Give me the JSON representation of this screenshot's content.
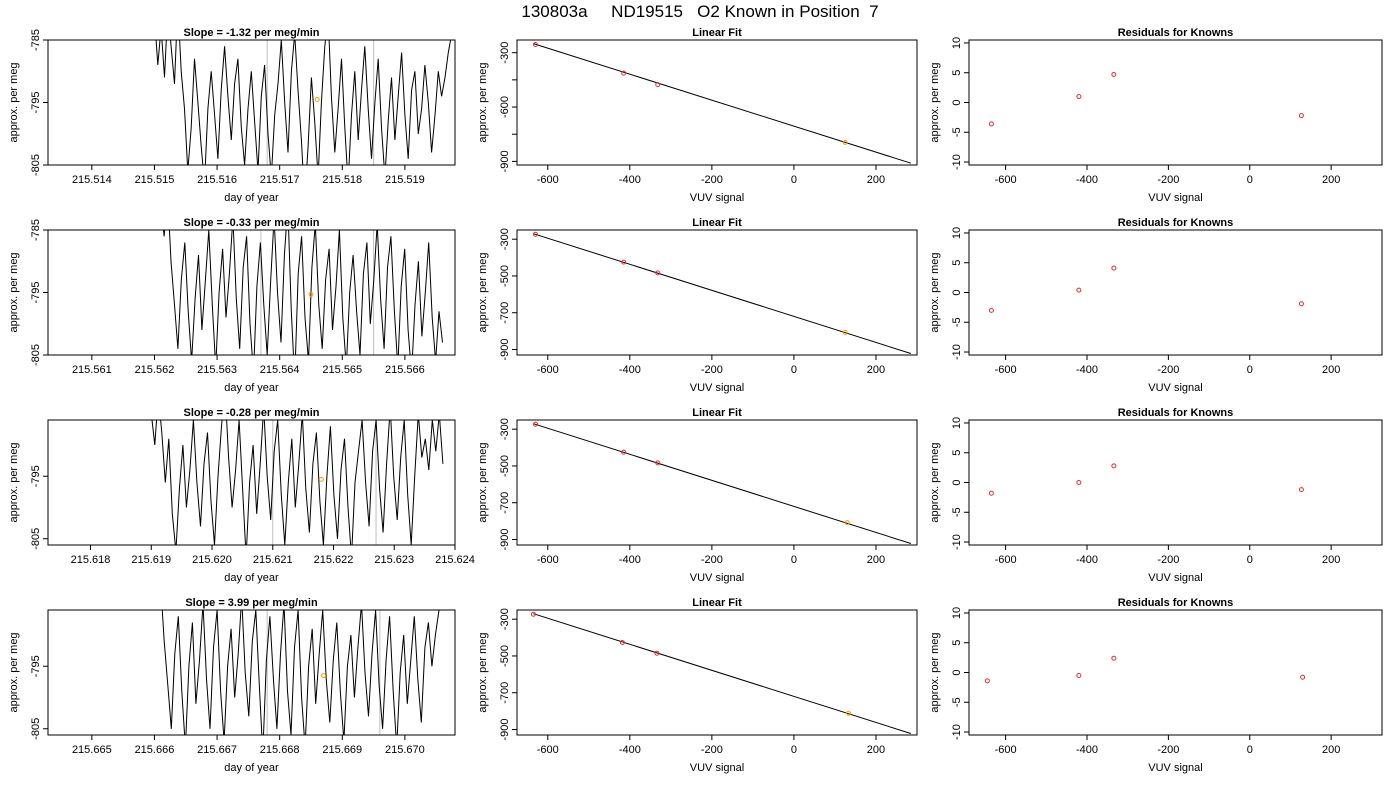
{
  "figure_title": "130803a     ND19515   O2 Known in Position  7",
  "colors": {
    "series_line": "#000000",
    "known_point": "#e03030",
    "current_point": "#ff9900",
    "marker_line": "#bfbfbf"
  },
  "chart_data": [
    {
      "type": "line",
      "row": 1,
      "title": "Slope =  -1.32  per meg/min",
      "xlabel": "day of year",
      "ylabel": "approx. per meg",
      "xlim": [
        215.5133,
        215.5198
      ],
      "ylim": [
        -805,
        -785
      ],
      "x_ticks": [
        "215.514",
        "215.515",
        "215.516",
        "215.517",
        "215.518",
        "215.519"
      ],
      "y_ticks": [
        "-805",
        "-795",
        "-785"
      ],
      "x_start": 215.515,
      "x_end": 215.5198,
      "y_values": [
        -781,
        -789,
        -783,
        -791,
        -780,
        -786,
        -792,
        -779,
        -790,
        -796,
        -806,
        -799,
        -788,
        -795,
        -802,
        -808,
        -796,
        -790,
        -797,
        -804,
        -793,
        -786,
        -794,
        -801,
        -792,
        -788,
        -799,
        -805,
        -796,
        -790,
        -798,
        -806,
        -794,
        -789,
        -800,
        -807,
        -797,
        -792,
        -785,
        -795,
        -803,
        -790,
        -784,
        -793,
        -801,
        -811,
        -802,
        -791,
        -798,
        -807,
        -795,
        -786,
        -781,
        -794,
        -803,
        -796,
        -788,
        -799,
        -808,
        -797,
        -790,
        -801,
        -793,
        -786,
        -796,
        -804,
        -795,
        -788,
        -799,
        -807,
        -798,
        -791,
        -801,
        -794,
        -787,
        -797,
        -804,
        -793,
        -790,
        -800,
        -796,
        -789,
        -795,
        -803,
        -797,
        -790,
        -794,
        -791,
        -787,
        -784,
        -783
      ],
      "markers_x": [
        215.5168,
        215.5185
      ],
      "current_point": {
        "x": 215.5176,
        "y": -794.5
      }
    },
    {
      "type": "scatter",
      "row": 1,
      "title": "Linear Fit",
      "xlabel": "VUV signal",
      "ylabel": "approx. per meg",
      "xlim": [
        -675,
        300
      ],
      "ylim": [
        -920,
        -230
      ],
      "x_ticks": [
        "-600",
        "-400",
        "-200",
        "0",
        "200"
      ],
      "y_ticks": [
        "-900",
        "-600",
        "-300"
      ],
      "y_minor_ticks": [
        -750,
        -450
      ],
      "fit_line": {
        "x": [
          -635,
          285
        ],
        "y": [
          -250,
          -910
        ]
      },
      "points": [
        {
          "x": -630,
          "y": -255,
          "kind": "known"
        },
        {
          "x": -415,
          "y": -413,
          "kind": "known"
        },
        {
          "x": -332,
          "y": -476,
          "kind": "known"
        },
        {
          "x": 125,
          "y": -795,
          "kind": "current"
        }
      ]
    },
    {
      "type": "scatter",
      "row": 1,
      "title": "Residuals for Knowns",
      "xlabel": "VUV signal",
      "ylabel": "approx. per meg",
      "xlim": [
        -690,
        325
      ],
      "ylim": [
        -10.5,
        10.5
      ],
      "x_ticks": [
        "-600",
        "-400",
        "-200",
        "0",
        "200"
      ],
      "y_ticks": [
        "-10",
        "-5",
        "0",
        "5",
        "10"
      ],
      "points": [
        {
          "x": -635,
          "y": -3.6
        },
        {
          "x": -420,
          "y": 1.0
        },
        {
          "x": -334,
          "y": 4.7
        },
        {
          "x": 127,
          "y": -2.2
        }
      ]
    },
    {
      "type": "line",
      "row": 2,
      "title": "Slope =  -0.33  per meg/min",
      "xlabel": "day of year",
      "ylabel": "approx. per meg",
      "xlim": [
        215.5603,
        215.5668
      ],
      "ylim": [
        -805,
        -785
      ],
      "x_ticks": [
        "215.561",
        "215.562",
        "215.563",
        "215.564",
        "215.565",
        "215.566"
      ],
      "y_ticks": [
        "-805",
        "-795",
        "-785"
      ],
      "x_start": 215.5621,
      "x_end": 215.5666,
      "y_values": [
        -780,
        -786,
        -779,
        -790,
        -797,
        -804,
        -793,
        -787,
        -798,
        -806,
        -796,
        -789,
        -801,
        -793,
        -785,
        -797,
        -807,
        -795,
        -788,
        -799,
        -792,
        -783,
        -796,
        -804,
        -791,
        -786,
        -800,
        -808,
        -794,
        -787,
        -797,
        -805,
        -793,
        -783,
        -795,
        -803,
        -789,
        -781,
        -798,
        -809,
        -792,
        -786,
        -799,
        -806,
        -791,
        -784,
        -797,
        -804,
        -793,
        -788,
        -801,
        -794,
        -785,
        -799,
        -807,
        -795,
        -789,
        -798,
        -805,
        -792,
        -787,
        -800,
        -793,
        -784,
        -796,
        -804,
        -791,
        -786,
        -798,
        -807,
        -794,
        -788,
        -801,
        -808,
        -797,
        -790,
        -802,
        -795,
        -787,
        -799,
        -806,
        -798,
        -803
      ],
      "markers_x": [
        215.5637,
        215.5655
      ],
      "current_point": {
        "x": 215.5645,
        "y": -795.3
      }
    },
    {
      "type": "scatter",
      "row": 2,
      "title": "Linear Fit",
      "xlabel": "VUV signal",
      "ylabel": "approx. per meg",
      "xlim": [
        -675,
        300
      ],
      "ylim": [
        -930,
        -250
      ],
      "x_ticks": [
        "-600",
        "-400",
        "-200",
        "0",
        "200"
      ],
      "y_ticks": [
        "-900",
        "-700",
        "-500",
        "-300"
      ],
      "fit_line": {
        "x": [
          -635,
          285
        ],
        "y": [
          -270,
          -922
        ]
      },
      "points": [
        {
          "x": -630,
          "y": -273,
          "kind": "known"
        },
        {
          "x": -415,
          "y": -425,
          "kind": "known"
        },
        {
          "x": -332,
          "y": -483,
          "kind": "known"
        },
        {
          "x": 125,
          "y": -807,
          "kind": "current"
        }
      ]
    },
    {
      "type": "scatter",
      "row": 2,
      "title": "Residuals for Knowns",
      "xlabel": "VUV signal",
      "ylabel": "approx. per meg",
      "xlim": [
        -690,
        325
      ],
      "ylim": [
        -10.5,
        10.5
      ],
      "x_ticks": [
        "-600",
        "-400",
        "-200",
        "0",
        "200"
      ],
      "y_ticks": [
        "-10",
        "-5",
        "0",
        "5",
        "10"
      ],
      "points": [
        {
          "x": -635,
          "y": -3.0
        },
        {
          "x": -420,
          "y": 0.4
        },
        {
          "x": -334,
          "y": 4.1
        },
        {
          "x": 127,
          "y": -1.9
        }
      ]
    },
    {
      "type": "line",
      "row": 3,
      "title": "Slope =  -0.28  per meg/min",
      "xlabel": "day of year",
      "ylabel": "approx. per meg",
      "xlim": [
        215.6173,
        215.624
      ],
      "ylim": [
        -806,
        -786
      ],
      "x_ticks": [
        "215.618",
        "215.619",
        "215.620",
        "215.621",
        "215.622",
        "215.623",
        "215.624"
      ],
      "y_ticks": [
        "-805",
        "-795"
      ],
      "x_start": 215.619,
      "x_end": 215.6238,
      "y_values": [
        -785,
        -790,
        -782,
        -788,
        -796,
        -789,
        -801,
        -807,
        -797,
        -790,
        -800,
        -794,
        -786,
        -796,
        -803,
        -793,
        -788,
        -799,
        -806,
        -795,
        -787,
        -781,
        -792,
        -800,
        -794,
        -786,
        -797,
        -808,
        -796,
        -790,
        -801,
        -793,
        -784,
        -795,
        -802,
        -791,
        -786,
        -798,
        -806,
        -796,
        -789,
        -800,
        -793,
        -785,
        -797,
        -804,
        -793,
        -788,
        -799,
        -806,
        -795,
        -787,
        -798,
        -805,
        -794,
        -789,
        -800,
        -808,
        -796,
        -791,
        -786,
        -796,
        -803,
        -791,
        -786,
        -797,
        -804,
        -793,
        -784,
        -795,
        -802,
        -792,
        -786,
        -798,
        -806,
        -795,
        -785,
        -792,
        -789,
        -794,
        -786,
        -791,
        -785,
        -793
      ],
      "markers_x": [
        215.621,
        215.6227
      ],
      "current_point": {
        "x": 215.6218,
        "y": -795.5
      }
    },
    {
      "type": "scatter",
      "row": 3,
      "title": "Linear Fit",
      "xlabel": "VUV signal",
      "ylabel": "approx. per meg",
      "xlim": [
        -675,
        300
      ],
      "ylim": [
        -930,
        -250
      ],
      "x_ticks": [
        "-600",
        "-400",
        "-200",
        "0",
        "200"
      ],
      "y_ticks": [
        "-900",
        "-700",
        "-500",
        "-300"
      ],
      "fit_line": {
        "x": [
          -635,
          285
        ],
        "y": [
          -270,
          -922
        ]
      },
      "points": [
        {
          "x": -630,
          "y": -273,
          "kind": "known"
        },
        {
          "x": -415,
          "y": -425,
          "kind": "known"
        },
        {
          "x": -332,
          "y": -483,
          "kind": "known"
        },
        {
          "x": 130,
          "y": -808,
          "kind": "current"
        }
      ]
    },
    {
      "type": "scatter",
      "row": 3,
      "title": "Residuals for Knowns",
      "xlabel": "VUV signal",
      "ylabel": "approx. per meg",
      "xlim": [
        -690,
        325
      ],
      "ylim": [
        -10.5,
        10.5
      ],
      "x_ticks": [
        "-600",
        "-400",
        "-200",
        "0",
        "200"
      ],
      "y_ticks": [
        "-10",
        "-5",
        "0",
        "5",
        "10"
      ],
      "points": [
        {
          "x": -635,
          "y": -1.8
        },
        {
          "x": -420,
          "y": 0.0
        },
        {
          "x": -334,
          "y": 2.8
        },
        {
          "x": 127,
          "y": -1.2
        }
      ]
    },
    {
      "type": "line",
      "row": 4,
      "title": "Slope =  3.99  per meg/min",
      "xlabel": "day of year",
      "ylabel": "approx. per meg",
      "xlim": [
        215.6643,
        215.6708
      ],
      "ylim": [
        -806,
        -786
      ],
      "x_ticks": [
        "215.665",
        "215.666",
        "215.667",
        "215.668",
        "215.669",
        "215.670"
      ],
      "y_ticks": [
        "-805",
        "-795"
      ],
      "x_start": 215.6661,
      "x_end": 215.6706,
      "y_values": [
        -782,
        -791,
        -798,
        -805,
        -793,
        -787,
        -799,
        -808,
        -795,
        -788,
        -801,
        -794,
        -785,
        -797,
        -805,
        -792,
        -786,
        -799,
        -807,
        -795,
        -789,
        -800,
        -793,
        -784,
        -796,
        -803,
        -791,
        -786,
        -798,
        -809,
        -794,
        -787,
        -797,
        -805,
        -793,
        -785,
        -799,
        -806,
        -792,
        -786,
        -800,
        -808,
        -795,
        -789,
        -801,
        -793,
        -786,
        -797,
        -804,
        -794,
        -788,
        -799,
        -807,
        -795,
        -790,
        -800,
        -792,
        -785,
        -796,
        -803,
        -793,
        -786,
        -798,
        -805,
        -794,
        -787,
        -799,
        -808,
        -796,
        -790,
        -801,
        -794,
        -787,
        -797,
        -804,
        -792,
        -788,
        -795,
        -790,
        -786,
        -784
      ],
      "markers_x": [
        215.6678,
        215.6696
      ],
      "current_point": {
        "x": 215.6687,
        "y": -796.5
      }
    },
    {
      "type": "scatter",
      "row": 4,
      "title": "Linear Fit",
      "xlabel": "VUV signal",
      "ylabel": "approx. per meg",
      "xlim": [
        -675,
        300
      ],
      "ylim": [
        -930,
        -250
      ],
      "x_ticks": [
        "-600",
        "-400",
        "-200",
        "0",
        "200"
      ],
      "y_ticks": [
        "-900",
        "-700",
        "-500",
        "-300"
      ],
      "fit_line": {
        "x": [
          -635,
          285
        ],
        "y": [
          -270,
          -922
        ]
      },
      "points": [
        {
          "x": -635,
          "y": -273,
          "kind": "known"
        },
        {
          "x": -418,
          "y": -427,
          "kind": "known"
        },
        {
          "x": -334,
          "y": -485,
          "kind": "known"
        },
        {
          "x": 133,
          "y": -812,
          "kind": "current"
        }
      ]
    },
    {
      "type": "scatter",
      "row": 4,
      "title": "Residuals for Knowns",
      "xlabel": "VUV signal",
      "ylabel": "approx. per meg",
      "xlim": [
        -690,
        325
      ],
      "ylim": [
        -10.5,
        10.5
      ],
      "x_ticks": [
        "-600",
        "-400",
        "-200",
        "0",
        "200"
      ],
      "y_ticks": [
        "-10",
        "-5",
        "0",
        "5",
        "10"
      ],
      "points": [
        {
          "x": -645,
          "y": -1.4
        },
        {
          "x": -420,
          "y": -0.5
        },
        {
          "x": -334,
          "y": 2.4
        },
        {
          "x": 130,
          "y": -0.8
        }
      ]
    }
  ]
}
